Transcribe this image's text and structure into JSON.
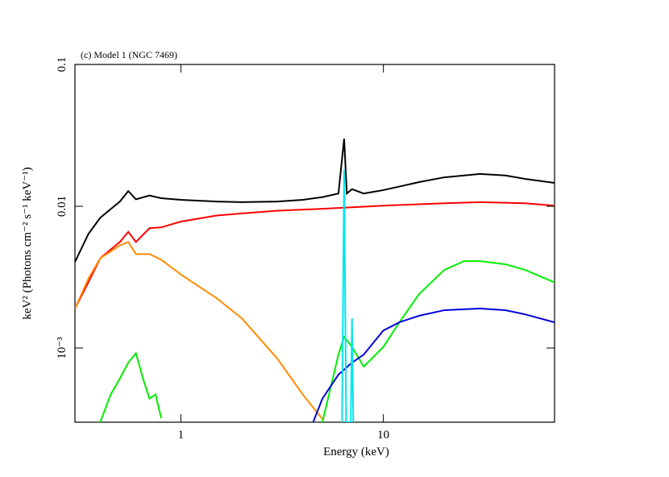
{
  "chart_data": {
    "type": "line",
    "annotation": "(c) Model 1 (NGC 7469)",
    "x_label": "Energy (keV)",
    "y_label": "keV² (Photons cm⁻² s⁻¹ keV⁻¹)",
    "x_log": true,
    "y_log": true,
    "xlim": [
      0.3,
      70
    ],
    "ylim": [
      0.0003,
      0.1
    ],
    "xticks": [
      1,
      10
    ],
    "yticks": [
      0.1,
      0.01,
      {
        "value": 0.001,
        "label": "10⁻³"
      }
    ],
    "series": [
      {
        "color": "#000000",
        "x": [
          0.3,
          0.35,
          0.4,
          0.5,
          0.55,
          0.6,
          0.7,
          0.8,
          1,
          1.5,
          2,
          3,
          4,
          5,
          6,
          6.4,
          6.6,
          7,
          8,
          10,
          15,
          20,
          30,
          40,
          50,
          70
        ],
        "values": [
          0.00405,
          0.0064,
          0.0083,
          0.0108,
          0.0128,
          0.0112,
          0.0119,
          0.0114,
          0.0111,
          0.0108,
          0.0107,
          0.0108,
          0.0111,
          0.0116,
          0.0123,
          0.03,
          0.0123,
          0.0132,
          0.0123,
          0.013,
          0.0148,
          0.016,
          0.0169,
          0.0165,
          0.0156,
          0.0146
        ]
      },
      {
        "color": "#ff0000",
        "x": [
          0.3,
          0.35,
          0.4,
          0.5,
          0.55,
          0.6,
          0.7,
          0.8,
          1,
          1.5,
          2,
          3,
          5,
          10,
          20,
          30,
          50,
          70
        ],
        "values": [
          0.0019,
          0.00292,
          0.0043,
          0.0056,
          0.0066,
          0.0056,
          0.007,
          0.0071,
          0.0078,
          0.0086,
          0.0089,
          0.0093,
          0.0096,
          0.0101,
          0.0105,
          0.0107,
          0.0105,
          0.0101
        ]
      },
      {
        "color": "#ff8c00",
        "x": [
          0.3,
          0.35,
          0.4,
          0.5,
          0.55,
          0.6,
          0.7,
          0.8,
          1,
          1.5,
          2,
          3,
          4,
          5
        ],
        "values": [
          0.0019,
          0.0031,
          0.0043,
          0.0053,
          0.0056,
          0.0046,
          0.0046,
          0.0042,
          0.0033,
          0.00225,
          0.00162,
          0.00084,
          0.00047,
          0.000316
        ]
      },
      {
        "color": "#00ee00",
        "x": [
          0.4,
          0.45,
          0.5,
          0.55,
          0.6,
          0.65,
          0.7,
          0.75,
          0.8,
          0.85,
          5,
          6,
          6.4,
          7,
          8,
          10,
          12,
          15,
          20,
          25,
          30,
          40,
          50,
          70
        ],
        "values": [
          0.0003,
          0.00047,
          0.00061,
          0.00079,
          0.00092,
          0.00061,
          0.00044,
          0.00047,
          0.00032,
          null,
          0.0003,
          0.0009,
          0.0012,
          0.00102,
          0.00074,
          0.00102,
          0.00152,
          0.0024,
          0.00356,
          0.0041,
          0.0041,
          0.0039,
          0.00356,
          0.0029
        ]
      },
      {
        "color": "#0000dd",
        "x": [
          4.5,
          5,
          6,
          7,
          8,
          10,
          12,
          15,
          20,
          30,
          40,
          50,
          70
        ],
        "values": [
          0.0003,
          0.00044,
          0.00065,
          0.00079,
          0.0009,
          0.00133,
          0.00152,
          0.00169,
          0.00185,
          0.0019,
          0.00185,
          0.00173,
          0.00152
        ]
      },
      {
        "color": "#00e5ee",
        "x": [
          6.25,
          6.4,
          6.55,
          6.9,
          7.0,
          7.1
        ],
        "values": [
          0.0003,
          0.0182,
          0.0003,
          0.0003,
          0.00162,
          0.0003
        ]
      }
    ]
  }
}
